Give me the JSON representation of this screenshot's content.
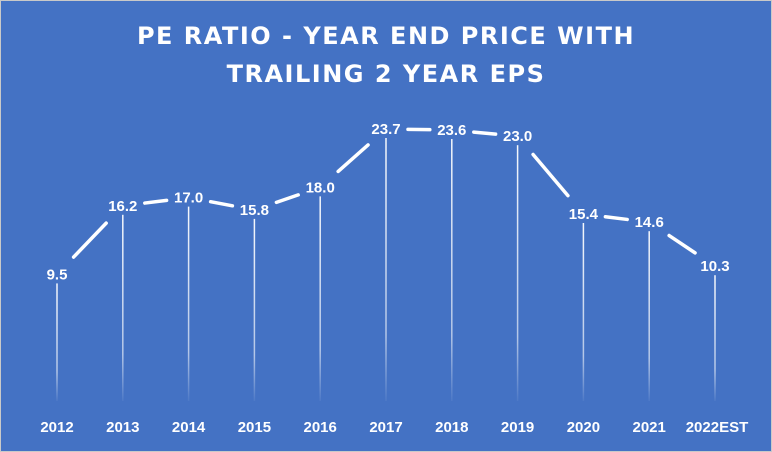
{
  "chart_data": {
    "type": "line",
    "title_lines": [
      "PE RATIO - YEAR END PRICE WITH",
      "TRAILING 2 YEAR EPS"
    ],
    "categories": [
      "2012",
      "2013",
      "2014",
      "2015",
      "2016",
      "2017",
      "2018",
      "2019",
      "2020",
      "2021",
      "2022EST"
    ],
    "values": [
      9.5,
      16.2,
      17.0,
      15.8,
      18.0,
      23.7,
      23.6,
      23.0,
      15.4,
      14.6,
      10.3
    ],
    "value_labels": [
      "9.5",
      "16.2",
      "17.0",
      "15.8",
      "18.0",
      "23.7",
      "23.6",
      "23.0",
      "15.4",
      "14.6",
      "10.3"
    ],
    "xlabel": "",
    "ylabel": "",
    "y_axis_visible": false,
    "drop_lines": true,
    "grid": false,
    "legend": "none",
    "colors": {
      "background": "#4472c4",
      "line": "#ffffff",
      "text": "#ffffff"
    }
  }
}
